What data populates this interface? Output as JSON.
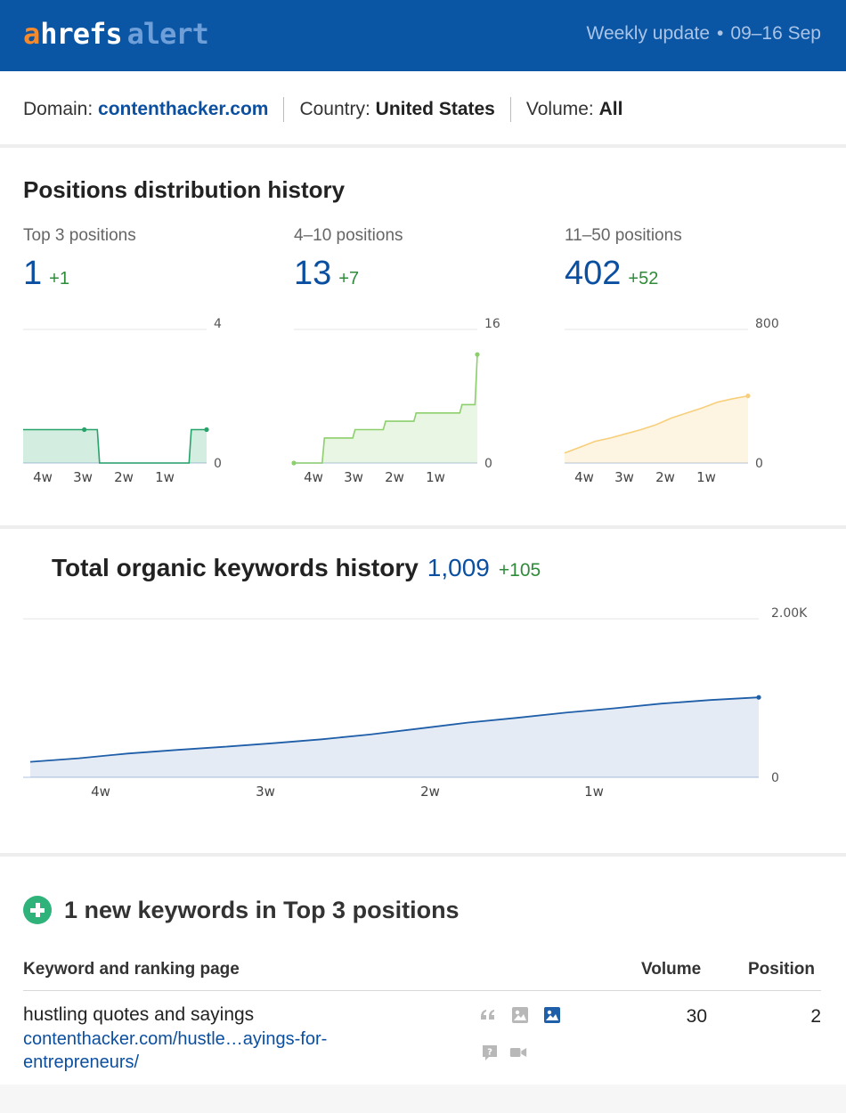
{
  "header": {
    "logo": {
      "a": "a",
      "hrefs": "hrefs",
      "alert": "alert"
    },
    "update_label": "Weekly update",
    "date_range": "09–16 Sep",
    "colors": {
      "background": "#0b56a4",
      "logo_a": "#f58a2c",
      "logo_alert": "#6f9fd8"
    }
  },
  "filters": {
    "domain_label": "Domain:",
    "domain_value": "contenthacker.com",
    "country_label": "Country:",
    "country_value": "United States",
    "volume_label": "Volume:",
    "volume_value": "All"
  },
  "positions": {
    "title": "Positions distribution history",
    "columns": [
      {
        "label": "Top 3 positions",
        "value": "1",
        "delta": "+1",
        "y_max_label": "4",
        "y_min_label": "0",
        "color": "#27a36a"
      },
      {
        "label": "4–10 positions",
        "value": "13",
        "delta": "+7",
        "y_max_label": "16",
        "y_min_label": "0",
        "color": "#8ccf6c"
      },
      {
        "label": "11–50 positions",
        "value": "402",
        "delta": "+52",
        "y_max_label": "800",
        "y_min_label": "0",
        "color": "#f7cf7a"
      }
    ],
    "x_ticks": [
      "4w",
      "3w",
      "2w",
      "1w"
    ]
  },
  "total": {
    "title": "Total organic keywords history",
    "value": "1,009",
    "delta": "+105",
    "y_max_label": "2.00K",
    "y_min_label": "0",
    "x_ticks": [
      "4w",
      "3w",
      "2w",
      "1w"
    ],
    "color": "#1f5ea8"
  },
  "new_keywords": {
    "title": "1 new keywords in Top 3 positions",
    "columns": {
      "keyword": "Keyword and ranking page",
      "volume": "Volume",
      "position": "Position"
    },
    "rows": [
      {
        "keyword": "hustling quotes and sayings",
        "url": "contenthacker.com/hustle…ayings-for-entrepreneurs/",
        "volume": "30",
        "position": "2",
        "serp_features": [
          "quote-icon",
          "image-icon",
          "image-highlighted-icon",
          "question-icon",
          "video-icon"
        ]
      }
    ]
  },
  "chart_data": [
    {
      "type": "line",
      "series": [
        {
          "values": [
            1,
            1,
            1,
            1,
            1,
            0,
            0,
            0,
            0,
            0,
            0,
            1,
            1
          ]
        }
      ],
      "ylim": [
        0,
        4
      ],
      "x_tick_labels": [
        "4w",
        "3w",
        "2w",
        "1w"
      ]
    },
    {
      "type": "area",
      "series": [
        {
          "values": [
            0,
            0,
            3,
            3,
            4,
            4,
            5,
            5,
            6,
            6,
            6,
            7,
            13
          ]
        }
      ],
      "ylim": [
        0,
        16
      ],
      "x_tick_labels": [
        "4w",
        "3w",
        "2w",
        "1w"
      ]
    },
    {
      "type": "area",
      "series": [
        {
          "values": [
            60,
            95,
            130,
            150,
            175,
            200,
            230,
            270,
            300,
            330,
            365,
            385,
            402
          ]
        }
      ],
      "ylim": [
        0,
        800
      ],
      "x_tick_labels": [
        "4w",
        "3w",
        "2w",
        "1w"
      ]
    },
    {
      "type": "area",
      "series": [
        {
          "values": [
            195,
            240,
            300,
            345,
            385,
            430,
            480,
            540,
            615,
            690,
            750,
            815,
            870,
            930,
            975,
            1009
          ]
        }
      ],
      "ylim": [
        0,
        2000
      ],
      "x_tick_labels": [
        "4w",
        "3w",
        "2w",
        "1w"
      ]
    }
  ]
}
